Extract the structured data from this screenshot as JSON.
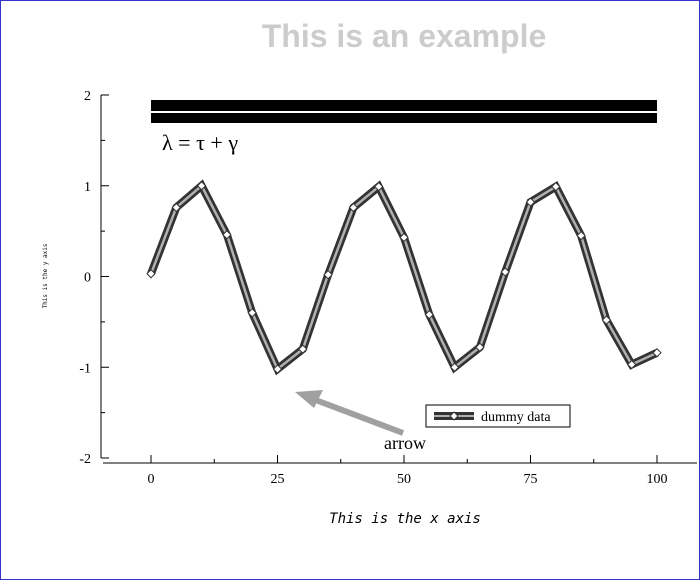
{
  "chart_data": {
    "type": "line",
    "title": "This is an example",
    "xlabel": "This is the x axis",
    "ylabel": "This is the y axis",
    "xlim": [
      0,
      100
    ],
    "ylim": [
      -2,
      2
    ],
    "x_ticks": [
      0,
      25,
      50,
      75,
      100
    ],
    "y_ticks": [
      -2,
      -1,
      0,
      1,
      2
    ],
    "series": [
      {
        "name": "dummy data",
        "x": [
          0,
          5,
          10,
          15,
          20,
          25,
          30,
          35,
          40,
          45,
          50,
          55,
          60,
          65,
          70,
          75,
          80,
          85,
          90,
          95,
          100
        ],
        "y": [
          0.03,
          0.76,
          1.0,
          0.46,
          -0.4,
          -1.02,
          -0.8,
          0.02,
          0.76,
          0.99,
          0.43,
          -0.42,
          -1.0,
          -0.78,
          0.05,
          0.82,
          0.99,
          0.45,
          -0.48,
          -0.97,
          -0.84
        ]
      }
    ],
    "legend_position": "lower-right",
    "annotations": {
      "formula": "λ = τ + γ",
      "arrow_text": "arrow"
    },
    "colors": {
      "title": "#cccccc",
      "line_outer": "#333333",
      "line_inner": "#b0b0b0",
      "arrow": "#a0a0a0",
      "border": "#3333cc"
    }
  }
}
